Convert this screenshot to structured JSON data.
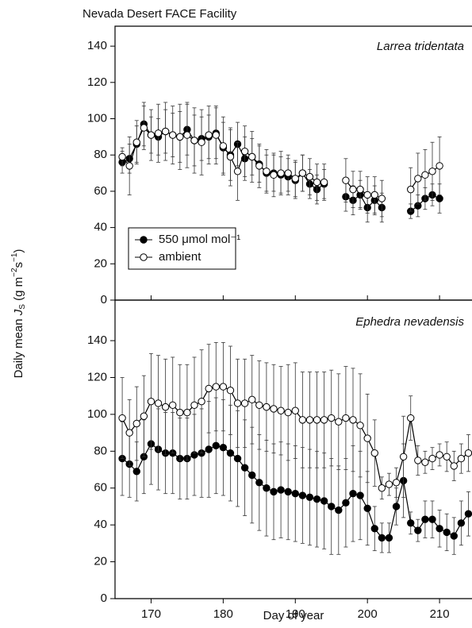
{
  "title": "Nevada Desert FACE Facility",
  "xlabel": "Day of year",
  "ylabel": [
    "Daily mean ",
    "J",
    "S",
    " (g m",
    "−2",
    "s",
    "−1",
    ")"
  ],
  "chart_data": [
    {
      "type": "line",
      "annotation": "Larrea tridentata",
      "xlim": [
        165,
        214.5
      ],
      "xticks": [
        170,
        180,
        190,
        200,
        210
      ],
      "ylim": [
        0,
        151
      ],
      "yticks": [
        0,
        20,
        40,
        60,
        80,
        100,
        120,
        140
      ],
      "legend": "lower left",
      "x": [
        166,
        167,
        168,
        169,
        170,
        171,
        172,
        173,
        174,
        175,
        176,
        177,
        178,
        179,
        180,
        181,
        182,
        183,
        184,
        185,
        186,
        187,
        188,
        189,
        190,
        191,
        192,
        193,
        194,
        195,
        196,
        197,
        198,
        199,
        200,
        201,
        202,
        203,
        204,
        205,
        206,
        207,
        208,
        209,
        210
      ],
      "series": [
        {
          "name": "550 μmol mol⁻¹",
          "color": "#000000",
          "marker_fill": "#000000",
          "values": [
            76,
            78,
            86,
            97,
            91,
            90,
            93,
            91,
            90,
            94,
            88,
            89,
            90,
            92,
            84,
            80,
            86,
            78,
            79,
            75,
            70,
            70,
            69,
            68,
            66,
            70,
            64,
            61,
            64,
            null,
            null,
            57,
            55,
            58,
            51,
            55,
            51,
            null,
            null,
            null,
            49,
            52,
            56,
            58,
            56
          ],
          "errors": [
            6,
            8,
            10,
            12,
            10,
            10,
            12,
            12,
            14,
            14,
            14,
            12,
            12,
            14,
            14,
            14,
            12,
            12,
            10,
            10,
            10,
            10,
            10,
            10,
            10,
            10,
            8,
            8,
            8,
            null,
            null,
            8,
            8,
            8,
            8,
            8,
            8,
            null,
            null,
            null,
            4,
            6,
            6,
            6,
            8
          ]
        },
        {
          "name": "ambient",
          "color": "#000000",
          "marker_fill": "#ffffff",
          "values": [
            79,
            74,
            87,
            95,
            91,
            92,
            93,
            91,
            90,
            91,
            88,
            87,
            91,
            91,
            85,
            79,
            71,
            82,
            79,
            74,
            71,
            69,
            70,
            70,
            67,
            70,
            68,
            65,
            65,
            null,
            null,
            66,
            61,
            61,
            58,
            58,
            56,
            null,
            null,
            null,
            61,
            67,
            69,
            71,
            74
          ],
          "errors": [
            5,
            16,
            12,
            12,
            14,
            16,
            16,
            16,
            18,
            18,
            18,
            18,
            16,
            16,
            16,
            16,
            16,
            14,
            14,
            12,
            12,
            12,
            12,
            10,
            10,
            10,
            10,
            10,
            10,
            null,
            null,
            12,
            10,
            10,
            10,
            10,
            10,
            null,
            null,
            null,
            12,
            14,
            14,
            16,
            16
          ]
        }
      ]
    },
    {
      "type": "line",
      "annotation": "Ephedra nevadensis",
      "xlim": [
        165,
        214.5
      ],
      "xticks": [
        170,
        180,
        190,
        200,
        210
      ],
      "ylim": [
        0,
        162
      ],
      "yticks": [
        0,
        20,
        40,
        60,
        80,
        100,
        120,
        140
      ],
      "x": [
        166,
        167,
        168,
        169,
        170,
        171,
        172,
        173,
        174,
        175,
        176,
        177,
        178,
        179,
        180,
        181,
        182,
        183,
        184,
        185,
        186,
        187,
        188,
        189,
        190,
        191,
        192,
        193,
        194,
        195,
        196,
        197,
        198,
        199,
        200,
        201,
        202,
        203,
        204,
        205,
        206,
        207,
        208,
        209,
        210,
        211,
        212,
        213,
        214
      ],
      "series": [
        {
          "color": "#000000",
          "marker_fill": "#000000",
          "values": [
            76,
            73,
            69,
            77,
            84,
            81,
            79,
            79,
            76,
            76,
            78,
            79,
            81,
            83,
            82,
            79,
            76,
            71,
            67,
            63,
            60,
            58,
            59,
            58,
            57,
            56,
            55,
            54,
            53,
            50,
            48,
            52,
            57,
            56,
            49,
            38,
            33,
            33,
            50,
            64,
            41,
            37,
            43,
            43,
            38,
            36,
            34,
            41,
            46
          ],
          "errors": [
            20,
            18,
            16,
            20,
            22,
            22,
            22,
            22,
            22,
            22,
            22,
            24,
            26,
            26,
            26,
            26,
            26,
            26,
            26,
            26,
            26,
            26,
            26,
            26,
            26,
            26,
            26,
            26,
            26,
            26,
            24,
            24,
            26,
            24,
            20,
            12,
            8,
            8,
            10,
            20,
            6,
            6,
            10,
            10,
            10,
            10,
            10,
            12,
            12
          ]
        },
        {
          "color": "#000000",
          "marker_fill": "#ffffff",
          "values": [
            98,
            90,
            95,
            99,
            107,
            106,
            104,
            105,
            101,
            101,
            105,
            107,
            114,
            115,
            115,
            113,
            106,
            106,
            108,
            105,
            104,
            103,
            102,
            101,
            102,
            97,
            97,
            97,
            97,
            98,
            96,
            98,
            97,
            94,
            87,
            79,
            60,
            62,
            63,
            77,
            98,
            75,
            74,
            76,
            78,
            77,
            72,
            76,
            79
          ],
          "errors": [
            22,
            18,
            20,
            22,
            26,
            26,
            26,
            26,
            26,
            26,
            26,
            28,
            24,
            24,
            24,
            24,
            24,
            24,
            24,
            24,
            24,
            24,
            24,
            26,
            26,
            26,
            26,
            26,
            26,
            26,
            26,
            28,
            28,
            28,
            24,
            18,
            6,
            6,
            8,
            22,
            12,
            8,
            6,
            6,
            6,
            8,
            8,
            8,
            10
          ]
        }
      ]
    }
  ]
}
